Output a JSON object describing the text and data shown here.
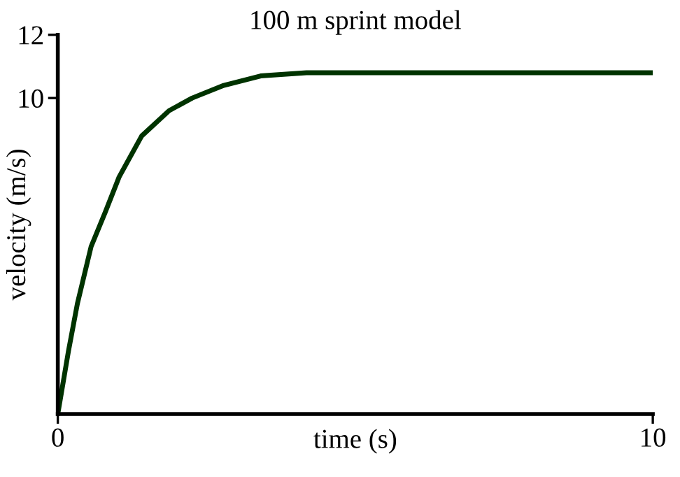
{
  "chart_data": {
    "type": "line",
    "title": "100 m sprint model",
    "xlabel": "time (s)",
    "ylabel": "velocity (m/s)",
    "x": [
      0,
      0.18,
      0.33,
      0.56,
      0.8,
      1.03,
      1.41,
      1.87,
      2.26,
      2.79,
      3.41,
      4.18,
      4.95,
      6,
      8,
      10
    ],
    "series": [
      {
        "color": "#003300",
        "values": [
          0,
          2.0,
          3.5,
          5.3,
          6.4,
          7.5,
          8.8,
          9.6,
          10.0,
          10.4,
          10.7,
          10.8,
          10.8,
          10.8,
          10.8,
          10.8
        ]
      }
    ],
    "xlim": [
      0,
      10
    ],
    "ylim": [
      0,
      12
    ],
    "xticks": [
      0,
      10
    ],
    "yticks": [
      10,
      12
    ],
    "grid": false,
    "legend": false,
    "marker": "none",
    "line_style": "solid"
  }
}
